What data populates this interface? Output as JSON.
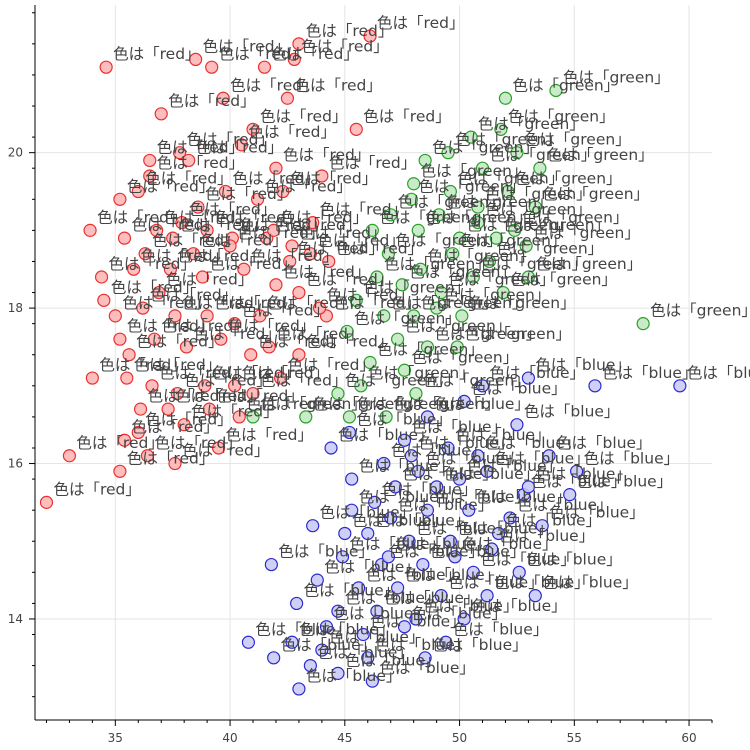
{
  "chart_data": {
    "type": "scatter",
    "title": "",
    "xlabel": "",
    "ylabel": "",
    "xlim": [
      31.5,
      61
    ],
    "ylim": [
      12.7,
      21.9
    ],
    "x_ticks": [
      35,
      40,
      45,
      50,
      55,
      60
    ],
    "y_ticks": [
      14,
      16,
      18,
      20
    ],
    "grid": true,
    "label_prefix": "色は「",
    "label_suffix": "」",
    "series": [
      {
        "name": "red",
        "fill": "#ffb3b3",
        "stroke": "#e83030",
        "points": [
          [
            46.1,
            21.5
          ],
          [
            34.6,
            21.1
          ],
          [
            38.5,
            21.2
          ],
          [
            39.2,
            21.1
          ],
          [
            41.5,
            21.1
          ],
          [
            42.8,
            21.2
          ],
          [
            43.0,
            21.4
          ],
          [
            39.7,
            20.7
          ],
          [
            42.5,
            20.7
          ],
          [
            37.0,
            20.5
          ],
          [
            45.5,
            20.3
          ],
          [
            41.0,
            20.3
          ],
          [
            40.5,
            20.1
          ],
          [
            37.8,
            20.0
          ],
          [
            38.2,
            19.9
          ],
          [
            42.0,
            19.8
          ],
          [
            36.5,
            19.7
          ],
          [
            44.0,
            19.7
          ],
          [
            35.2,
            19.4
          ],
          [
            36.0,
            19.5
          ],
          [
            38.6,
            19.3
          ],
          [
            41.2,
            19.4
          ],
          [
            42.3,
            19.5
          ],
          [
            33.9,
            19.0
          ],
          [
            35.4,
            18.9
          ],
          [
            36.8,
            19.0
          ],
          [
            37.9,
            19.1
          ],
          [
            39.0,
            19.0
          ],
          [
            40.1,
            18.9
          ],
          [
            41.6,
            18.9
          ],
          [
            42.7,
            18.8
          ],
          [
            43.5,
            18.7
          ],
          [
            44.3,
            18.6
          ],
          [
            36.3,
            18.7
          ],
          [
            35.8,
            18.5
          ],
          [
            34.4,
            18.4
          ],
          [
            37.4,
            18.5
          ],
          [
            38.8,
            18.4
          ],
          [
            40.6,
            18.5
          ],
          [
            42.0,
            18.3
          ],
          [
            43.0,
            18.2
          ],
          [
            34.5,
            18.1
          ],
          [
            35.0,
            17.9
          ],
          [
            36.2,
            18.0
          ],
          [
            37.6,
            17.9
          ],
          [
            39.0,
            17.9
          ],
          [
            40.2,
            17.8
          ],
          [
            41.3,
            17.9
          ],
          [
            44.2,
            17.9
          ],
          [
            35.2,
            17.6
          ],
          [
            36.7,
            17.6
          ],
          [
            38.1,
            17.5
          ],
          [
            39.6,
            17.6
          ],
          [
            41.7,
            17.5
          ],
          [
            43.0,
            17.4
          ],
          [
            35.6,
            17.4
          ],
          [
            34.0,
            17.1
          ],
          [
            35.5,
            17.1
          ],
          [
            36.6,
            17.0
          ],
          [
            37.7,
            16.9
          ],
          [
            38.9,
            17.0
          ],
          [
            40.2,
            17.0
          ],
          [
            36.1,
            16.7
          ],
          [
            37.3,
            16.7
          ],
          [
            39.1,
            16.7
          ],
          [
            40.4,
            16.6
          ],
          [
            36.0,
            16.4
          ],
          [
            38.0,
            16.5
          ],
          [
            35.4,
            16.3
          ],
          [
            33.0,
            16.1
          ],
          [
            36.4,
            16.1
          ],
          [
            37.6,
            16.0
          ],
          [
            35.2,
            15.9
          ],
          [
            32.0,
            15.5
          ],
          [
            40.0,
            18.8
          ],
          [
            41.9,
            19.0
          ],
          [
            37.5,
            18.9
          ],
          [
            38.4,
            18.7
          ],
          [
            36.9,
            18.2
          ],
          [
            42.6,
            18.6
          ],
          [
            43.6,
            19.1
          ],
          [
            39.8,
            19.5
          ],
          [
            40.9,
            17.4
          ],
          [
            42.2,
            17.1
          ],
          [
            39.5,
            16.2
          ],
          [
            43.9,
            18.0
          ],
          [
            36.5,
            19.9
          ],
          [
            41.0,
            16.9
          ]
        ]
      },
      {
        "name": "green",
        "fill": "#bfe8bf",
        "stroke": "#2aa02a",
        "points": [
          [
            54.2,
            20.8
          ],
          [
            52.0,
            20.7
          ],
          [
            51.8,
            20.3
          ],
          [
            50.5,
            20.2
          ],
          [
            52.5,
            20.0
          ],
          [
            49.5,
            20.0
          ],
          [
            53.5,
            19.8
          ],
          [
            48.5,
            19.9
          ],
          [
            51.0,
            19.8
          ],
          [
            48.0,
            19.6
          ],
          [
            49.6,
            19.5
          ],
          [
            52.1,
            19.5
          ],
          [
            50.8,
            19.3
          ],
          [
            47.0,
            19.2
          ],
          [
            49.1,
            19.2
          ],
          [
            53.3,
            19.3
          ],
          [
            46.2,
            19.0
          ],
          [
            48.2,
            19.0
          ],
          [
            50.0,
            18.9
          ],
          [
            51.6,
            18.9
          ],
          [
            52.9,
            18.8
          ],
          [
            46.9,
            18.7
          ],
          [
            49.7,
            18.7
          ],
          [
            51.3,
            18.6
          ],
          [
            48.3,
            18.5
          ],
          [
            50.6,
            18.4
          ],
          [
            53.0,
            18.4
          ],
          [
            47.5,
            18.3
          ],
          [
            49.2,
            18.2
          ],
          [
            51.9,
            18.2
          ],
          [
            45.5,
            18.1
          ],
          [
            46.7,
            17.9
          ],
          [
            48.0,
            17.9
          ],
          [
            50.1,
            17.9
          ],
          [
            58.0,
            17.8
          ],
          [
            45.1,
            17.7
          ],
          [
            47.3,
            17.6
          ],
          [
            48.6,
            17.5
          ],
          [
            49.9,
            17.5
          ],
          [
            46.1,
            17.3
          ],
          [
            47.6,
            17.2
          ],
          [
            45.7,
            17.0
          ],
          [
            48.1,
            16.9
          ],
          [
            41.0,
            16.6
          ],
          [
            43.3,
            16.6
          ],
          [
            45.2,
            16.6
          ],
          [
            46.8,
            16.6
          ],
          [
            44.7,
            16.9
          ],
          [
            50.8,
            19.1
          ],
          [
            47.9,
            19.4
          ],
          [
            46.4,
            18.4
          ],
          [
            52.4,
            19.0
          ],
          [
            49.0,
            18.0
          ]
        ]
      },
      {
        "name": "blue",
        "fill": "#c8c8f4",
        "stroke": "#2a2ad0",
        "points": [
          [
            55.9,
            17.0
          ],
          [
            59.6,
            17.0
          ],
          [
            53.0,
            17.1
          ],
          [
            51.0,
            17.0
          ],
          [
            50.2,
            16.8
          ],
          [
            48.6,
            16.6
          ],
          [
            52.5,
            16.5
          ],
          [
            45.2,
            16.4
          ],
          [
            47.6,
            16.3
          ],
          [
            49.5,
            16.2
          ],
          [
            50.8,
            16.1
          ],
          [
            53.9,
            16.1
          ],
          [
            46.7,
            16.0
          ],
          [
            48.2,
            15.9
          ],
          [
            51.2,
            15.9
          ],
          [
            55.1,
            15.9
          ],
          [
            45.3,
            15.8
          ],
          [
            47.2,
            15.7
          ],
          [
            49.0,
            15.7
          ],
          [
            52.8,
            15.6
          ],
          [
            54.8,
            15.6
          ],
          [
            46.3,
            15.5
          ],
          [
            48.6,
            15.4
          ],
          [
            50.4,
            15.4
          ],
          [
            45.3,
            15.4
          ],
          [
            47.0,
            15.3
          ],
          [
            52.2,
            15.3
          ],
          [
            53.6,
            15.2
          ],
          [
            43.6,
            15.2
          ],
          [
            46.0,
            15.1
          ],
          [
            47.8,
            15.0
          ],
          [
            49.6,
            15.0
          ],
          [
            51.4,
            14.9
          ],
          [
            44.9,
            14.8
          ],
          [
            46.6,
            14.7
          ],
          [
            48.4,
            14.7
          ],
          [
            41.8,
            14.7
          ],
          [
            50.6,
            14.6
          ],
          [
            52.6,
            14.6
          ],
          [
            43.8,
            14.5
          ],
          [
            45.6,
            14.4
          ],
          [
            47.3,
            14.4
          ],
          [
            49.2,
            14.3
          ],
          [
            51.2,
            14.3
          ],
          [
            53.3,
            14.3
          ],
          [
            44.7,
            14.1
          ],
          [
            46.4,
            14.1
          ],
          [
            48.1,
            14.0
          ],
          [
            42.9,
            14.2
          ],
          [
            50.2,
            14.0
          ],
          [
            44.2,
            13.9
          ],
          [
            45.8,
            13.8
          ],
          [
            47.6,
            13.9
          ],
          [
            49.4,
            13.7
          ],
          [
            40.8,
            13.7
          ],
          [
            42.7,
            13.7
          ],
          [
            44.0,
            13.6
          ],
          [
            46.0,
            13.5
          ],
          [
            48.5,
            13.5
          ],
          [
            41.9,
            13.5
          ],
          [
            43.5,
            13.4
          ],
          [
            44.7,
            13.3
          ],
          [
            46.2,
            13.2
          ],
          [
            43.0,
            13.1
          ],
          [
            50.0,
            15.8
          ],
          [
            49.8,
            14.8
          ],
          [
            51.7,
            15.1
          ],
          [
            47.9,
            16.1
          ],
          [
            46.9,
            14.8
          ],
          [
            45.0,
            15.1
          ],
          [
            53.0,
            15.7
          ],
          [
            44.4,
            16.2
          ]
        ]
      }
    ]
  }
}
